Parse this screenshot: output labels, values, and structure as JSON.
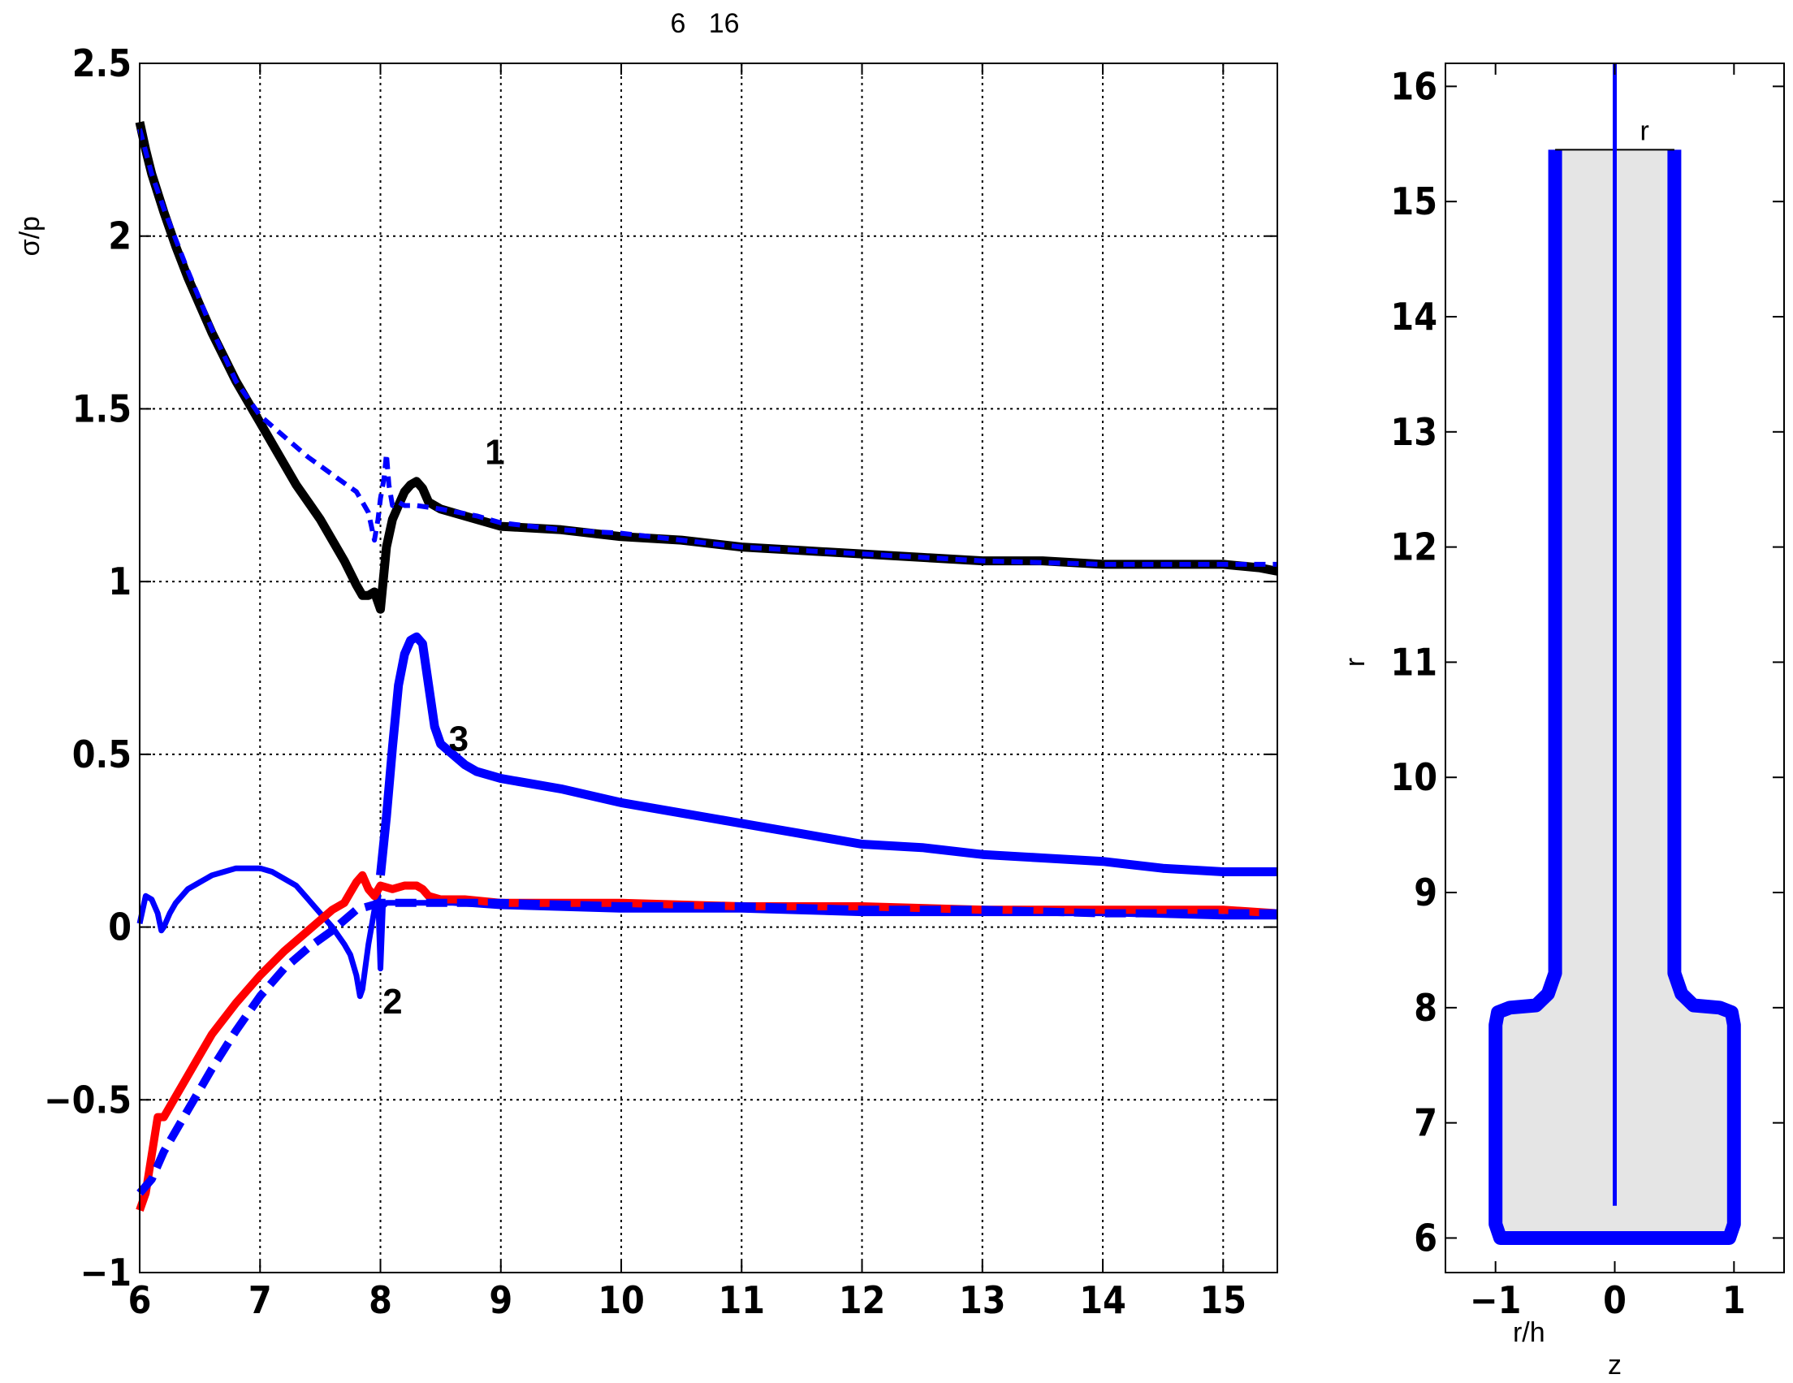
{
  "title": "6   16",
  "chart_data": [
    {
      "type": "line",
      "title": "6   16",
      "xlabel": "",
      "ylabel": "σ/p",
      "xlim": [
        6,
        15.45
      ],
      "ylim": [
        -1,
        2.5
      ],
      "xticks": [
        "6",
        "7",
        "8",
        "9",
        "10",
        "11",
        "12",
        "13",
        "14",
        "15"
      ],
      "yticks": [
        "2.5",
        "2",
        "1.5",
        "1",
        "0.5",
        "0",
        "−0.5",
        "−1"
      ],
      "grid": true,
      "curve_labels": [
        {
          "text": "1",
          "x": 8.95,
          "y": 1.34
        },
        {
          "text": "3",
          "x": 8.65,
          "y": 0.51
        },
        {
          "text": "2",
          "x": 8.1,
          "y": -0.25
        }
      ],
      "series": [
        {
          "color": "#000000",
          "style": "solid",
          "width": 11,
          "x": [
            6.0,
            6.05,
            6.1,
            6.2,
            6.3,
            6.4,
            6.5,
            6.6,
            6.7,
            6.8,
            6.9,
            7.0,
            7.1,
            7.2,
            7.3,
            7.4,
            7.5,
            7.6,
            7.7,
            7.8,
            7.85,
            7.9,
            7.95,
            8.0,
            8.05,
            8.1,
            8.15,
            8.2,
            8.25,
            8.3,
            8.35,
            8.4,
            8.5,
            8.6,
            8.8,
            9.0,
            9.5,
            10.0,
            10.5,
            11.0,
            11.5,
            12.0,
            12.5,
            13.0,
            13.5,
            14.0,
            14.5,
            15.0,
            15.3,
            15.45
          ],
          "y": [
            2.33,
            2.25,
            2.18,
            2.07,
            1.97,
            1.88,
            1.8,
            1.72,
            1.65,
            1.58,
            1.52,
            1.46,
            1.4,
            1.34,
            1.28,
            1.23,
            1.18,
            1.12,
            1.06,
            0.99,
            0.96,
            0.96,
            0.97,
            0.92,
            1.1,
            1.18,
            1.22,
            1.26,
            1.28,
            1.29,
            1.27,
            1.23,
            1.21,
            1.2,
            1.18,
            1.16,
            1.15,
            1.13,
            1.12,
            1.1,
            1.09,
            1.08,
            1.07,
            1.06,
            1.06,
            1.05,
            1.05,
            1.05,
            1.04,
            1.03
          ]
        },
        {
          "color": "#0000ff",
          "style": "dashed",
          "width": 6,
          "x": [
            6.0,
            6.1,
            6.2,
            6.4,
            6.6,
            6.8,
            7.0,
            7.2,
            7.4,
            7.6,
            7.8,
            7.9,
            7.95,
            7.98,
            8.0,
            8.03,
            8.05,
            8.07,
            8.1,
            8.15,
            8.2,
            8.3,
            8.5,
            8.8,
            9.0,
            9.5,
            10.0,
            10.5,
            11.0,
            12.0,
            13.0,
            14.0,
            15.0,
            15.45
          ],
          "y": [
            2.31,
            2.18,
            2.08,
            1.9,
            1.73,
            1.58,
            1.48,
            1.42,
            1.36,
            1.31,
            1.26,
            1.2,
            1.12,
            1.18,
            1.24,
            1.3,
            1.37,
            1.28,
            1.22,
            1.23,
            1.22,
            1.22,
            1.21,
            1.19,
            1.17,
            1.15,
            1.14,
            1.12,
            1.1,
            1.08,
            1.06,
            1.05,
            1.05,
            1.05
          ]
        },
        {
          "color": "#0000ff",
          "style": "solid",
          "width": 11,
          "x": [
            8.0,
            8.05,
            8.1,
            8.15,
            8.2,
            8.25,
            8.3,
            8.35,
            8.4,
            8.45,
            8.5,
            8.6,
            8.7,
            8.8,
            9.0,
            9.5,
            10.0,
            10.5,
            11.0,
            11.5,
            12.0,
            12.5,
            13.0,
            13.5,
            14.0,
            14.5,
            15.0,
            15.45
          ],
          "y": [
            0.15,
            0.32,
            0.52,
            0.7,
            0.79,
            0.83,
            0.84,
            0.82,
            0.7,
            0.58,
            0.53,
            0.5,
            0.47,
            0.45,
            0.43,
            0.4,
            0.36,
            0.33,
            0.3,
            0.27,
            0.24,
            0.23,
            0.21,
            0.2,
            0.19,
            0.17,
            0.16,
            0.16
          ]
        },
        {
          "color": "#0000ff",
          "style": "solid",
          "width": 7,
          "x": [
            6.0,
            6.05,
            6.1,
            6.15,
            6.18,
            6.2,
            6.25,
            6.3,
            6.4,
            6.5,
            6.6,
            6.7,
            6.8,
            6.9,
            7.0,
            7.1,
            7.2,
            7.3,
            7.4,
            7.5,
            7.6,
            7.7,
            7.75,
            7.8,
            7.83,
            7.85,
            7.9,
            7.95,
            7.98,
            8.0,
            8.02,
            8.05,
            8.1,
            8.2,
            8.4,
            8.6,
            9.0,
            10.0,
            11.0,
            12.0,
            13.0,
            14.0,
            15.0,
            15.45
          ],
          "y": [
            0.01,
            0.09,
            0.08,
            0.04,
            -0.01,
            0.0,
            0.04,
            0.07,
            0.11,
            0.13,
            0.15,
            0.16,
            0.17,
            0.17,
            0.17,
            0.16,
            0.14,
            0.12,
            0.08,
            0.04,
            0.0,
            -0.05,
            -0.08,
            -0.14,
            -0.2,
            -0.18,
            -0.05,
            0.05,
            0.1,
            -0.12,
            0.06,
            0.07,
            0.07,
            0.07,
            0.07,
            0.07,
            0.06,
            0.05,
            0.05,
            0.04,
            0.04,
            0.04,
            0.03,
            0.03
          ]
        },
        {
          "color": "#ff0000",
          "style": "solid",
          "width": 10,
          "x": [
            6.0,
            6.05,
            6.1,
            6.15,
            6.2,
            6.3,
            6.4,
            6.5,
            6.6,
            6.8,
            7.0,
            7.2,
            7.4,
            7.6,
            7.7,
            7.75,
            7.8,
            7.85,
            7.9,
            7.95,
            8.0,
            8.1,
            8.2,
            8.3,
            8.35,
            8.4,
            8.5,
            8.7,
            9.0,
            9.5,
            10.0,
            11.0,
            12.0,
            13.0,
            14.0,
            15.0,
            15.45
          ],
          "y": [
            -0.82,
            -0.77,
            -0.66,
            -0.55,
            -0.55,
            -0.49,
            -0.43,
            -0.37,
            -0.31,
            -0.22,
            -0.14,
            -0.07,
            -0.01,
            0.05,
            0.07,
            0.1,
            0.13,
            0.15,
            0.11,
            0.09,
            0.12,
            0.11,
            0.12,
            0.12,
            0.11,
            0.09,
            0.08,
            0.08,
            0.07,
            0.07,
            0.07,
            0.06,
            0.06,
            0.05,
            0.05,
            0.05,
            0.04
          ]
        },
        {
          "color": "#0000ff",
          "style": "dashed",
          "width": 10,
          "x": [
            6.0,
            6.1,
            6.2,
            6.4,
            6.6,
            6.8,
            7.0,
            7.2,
            7.4,
            7.6,
            7.7,
            7.8,
            7.9,
            8.0,
            8.2,
            8.5,
            9.0,
            10.0,
            11.0,
            12.0,
            13.0,
            14.0,
            15.0,
            15.45
          ],
          "y": [
            -0.77,
            -0.73,
            -0.65,
            -0.53,
            -0.41,
            -0.3,
            -0.2,
            -0.12,
            -0.06,
            -0.01,
            0.02,
            0.05,
            0.06,
            0.07,
            0.07,
            0.07,
            0.07,
            0.06,
            0.06,
            0.05,
            0.05,
            0.04,
            0.04,
            0.04
          ]
        }
      ]
    },
    {
      "type": "line",
      "title": "",
      "xlabel": "z",
      "xlabel_inset": "r/h",
      "ylabel": "r",
      "top_label": "r",
      "xlim": [
        -1.42,
        1.42
      ],
      "ylim": [
        5.7,
        16.2
      ],
      "xticks": [
        "−1",
        "0",
        "1"
      ],
      "yticks": [
        "16",
        "15",
        "14",
        "13",
        "12",
        "11",
        "10",
        "9",
        "8",
        "7",
        "6"
      ],
      "grid": false,
      "profile": {
        "outline_color": "#0000ff",
        "fill_color": "#e5e5e5",
        "axis_line_color": "#0000ff",
        "x": [
          -0.5,
          -0.5,
          -0.56,
          -0.66,
          -0.88,
          -0.98,
          -1.0,
          -1.0,
          -0.96,
          0.96,
          1.0,
          1.0,
          0.98,
          0.88,
          0.66,
          0.56,
          0.5,
          0.5
        ],
        "y": [
          15.45,
          8.3,
          8.12,
          8.02,
          8.0,
          7.96,
          7.85,
          6.12,
          6.0,
          6.0,
          6.12,
          7.85,
          7.96,
          8.0,
          8.02,
          8.12,
          8.3,
          15.45
        ],
        "top_line": {
          "x": [
            -0.5,
            0.5
          ],
          "y": 15.45
        },
        "center_line": {
          "x": 0,
          "y": [
            6.28,
            16.2
          ]
        }
      }
    }
  ]
}
